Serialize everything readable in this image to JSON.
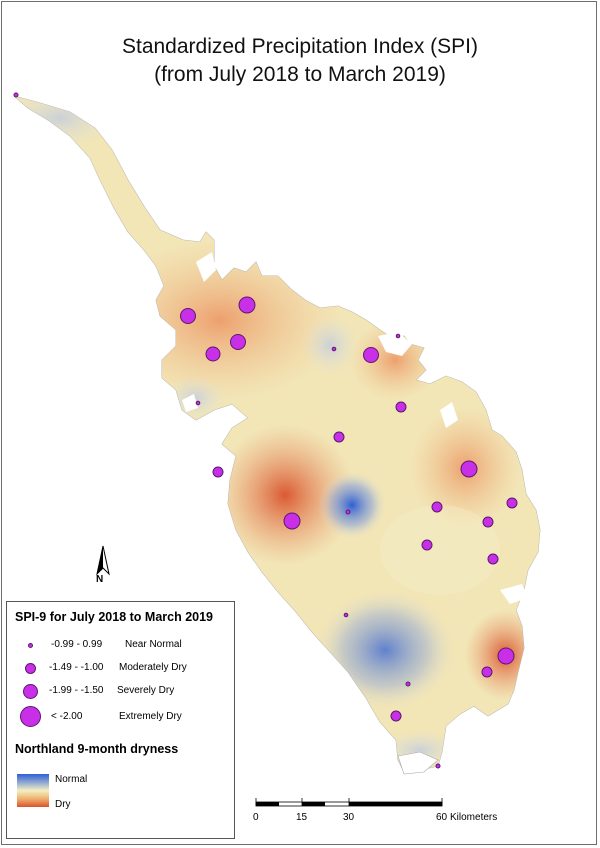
{
  "title_line1": "Standardized Precipitation Index (SPI)",
  "title_line2": "(from July 2018 to March 2019)",
  "legend": {
    "title": "SPI-9 for July 2018 to March 2019",
    "classes": [
      {
        "range": "-0.99 - 0.99",
        "label": "Near Normal"
      },
      {
        "range": "-1.49 - -1.00",
        "label": "Moderately Dry"
      },
      {
        "range": "-1.99 - -1.50",
        "label": "Severely Dry"
      },
      {
        "range": "< -2.00",
        "label": "Extremely Dry"
      }
    ],
    "surface_title": "Northland 9-month dryness",
    "ramp_high": "Normal",
    "ramp_low": "Dry",
    "ramp_colors": [
      "#2f5fd3",
      "#f4f0c2",
      "#d9522b"
    ],
    "marker_color": "#c92fe7"
  },
  "north_label": "N",
  "scale": {
    "ticks": [
      "0",
      "15",
      "30",
      "60"
    ],
    "unit": "Kilometers"
  }
}
